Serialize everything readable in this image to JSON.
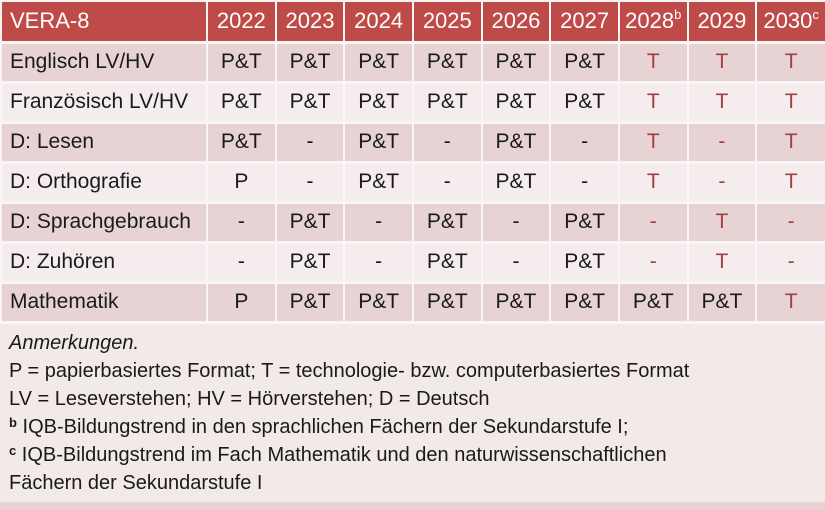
{
  "colors": {
    "header_bg": "#be4b48",
    "header_text": "#ffffff",
    "row_dark": "#e7d3d3",
    "row_light": "#f5eded",
    "notes_bg": "#f2e9e9",
    "red_text": "#a04043",
    "text": "#1a1a1a",
    "separator": "#faf6f6"
  },
  "table": {
    "title": "VERA-8",
    "header": {
      "years": [
        {
          "y": "2022",
          "sup": ""
        },
        {
          "y": "2023",
          "sup": ""
        },
        {
          "y": "2024",
          "sup": ""
        },
        {
          "y": "2025",
          "sup": ""
        },
        {
          "y": "2026",
          "sup": ""
        },
        {
          "y": "2027",
          "sup": ""
        },
        {
          "y": "2028",
          "sup": "b"
        },
        {
          "y": "2029",
          "sup": ""
        },
        {
          "y": "2030",
          "sup": "c"
        }
      ]
    },
    "rows": [
      {
        "label": "Englisch LV/HV",
        "cells": [
          {
            "t": "P&T"
          },
          {
            "t": "P&T"
          },
          {
            "t": "P&T"
          },
          {
            "t": "P&T"
          },
          {
            "t": "P&T"
          },
          {
            "t": "P&T"
          },
          {
            "t": "T",
            "red": true
          },
          {
            "t": "T",
            "red": true
          },
          {
            "t": "T",
            "red": true
          }
        ]
      },
      {
        "label": "Französisch LV/HV",
        "cells": [
          {
            "t": "P&T"
          },
          {
            "t": "P&T"
          },
          {
            "t": "P&T"
          },
          {
            "t": "P&T"
          },
          {
            "t": "P&T"
          },
          {
            "t": "P&T"
          },
          {
            "t": "T",
            "red": true
          },
          {
            "t": "T",
            "red": true
          },
          {
            "t": "T",
            "red": true
          }
        ]
      },
      {
        "label": "D: Lesen",
        "cells": [
          {
            "t": "P&T"
          },
          {
            "t": "-"
          },
          {
            "t": "P&T"
          },
          {
            "t": "-"
          },
          {
            "t": "P&T"
          },
          {
            "t": "-"
          },
          {
            "t": "T",
            "red": true
          },
          {
            "t": "-",
            "red": true
          },
          {
            "t": "T",
            "red": true
          }
        ]
      },
      {
        "label": "D: Orthografie",
        "cells": [
          {
            "t": "P"
          },
          {
            "t": "-"
          },
          {
            "t": "P&T"
          },
          {
            "t": "-"
          },
          {
            "t": "P&T"
          },
          {
            "t": "-"
          },
          {
            "t": "T",
            "red": true
          },
          {
            "t": "-",
            "red": true
          },
          {
            "t": "T",
            "red": true
          }
        ]
      },
      {
        "label": "D: Sprachgebrauch",
        "cells": [
          {
            "t": "-"
          },
          {
            "t": "P&T"
          },
          {
            "t": "-"
          },
          {
            "t": "P&T"
          },
          {
            "t": "-"
          },
          {
            "t": "P&T"
          },
          {
            "t": "-",
            "red": true
          },
          {
            "t": "T",
            "red": true
          },
          {
            "t": "-",
            "red": true
          }
        ]
      },
      {
        "label": "D: Zuhören",
        "cells": [
          {
            "t": "-"
          },
          {
            "t": "P&T"
          },
          {
            "t": "-"
          },
          {
            "t": "P&T"
          },
          {
            "t": "-"
          },
          {
            "t": "P&T"
          },
          {
            "t": "-",
            "red": true
          },
          {
            "t": "T",
            "red": true
          },
          {
            "t": "-",
            "red": true
          }
        ]
      },
      {
        "label": "Mathematik",
        "cells": [
          {
            "t": "P"
          },
          {
            "t": "P&T"
          },
          {
            "t": "P&T"
          },
          {
            "t": "P&T"
          },
          {
            "t": "P&T"
          },
          {
            "t": "P&T"
          },
          {
            "t": "P&T"
          },
          {
            "t": "P&T"
          },
          {
            "t": "T",
            "red": true
          }
        ]
      }
    ]
  },
  "notes": {
    "title": "Anmerkungen.",
    "formats": "P = papierbasiertes Format; T = technologie- bzw. computerbasiertes Format",
    "abbreviations": "LV = Leseverstehen; HV = Hörverstehen; D = Deutsch",
    "footnote_b": {
      "marker": "b",
      "text": "IQB-Bildungstrend in den sprachlichen Fächern der Sekundarstufe I;"
    },
    "footnote_c": {
      "marker": "c",
      "text_line1": "IQB-Bildungstrend im Fach Mathematik und den naturwissenschaftlichen",
      "text_line2": "Fächern der Sekundarstufe I"
    }
  }
}
